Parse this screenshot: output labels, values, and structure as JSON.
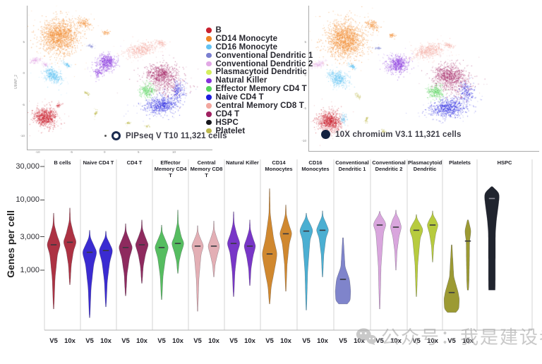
{
  "legend": {
    "items": [
      {
        "label": "B",
        "color": "#C9202E"
      },
      {
        "label": "CD14 Monocyte",
        "color": "#F08627"
      },
      {
        "label": "CD16 Monocyte",
        "color": "#62C3F3"
      },
      {
        "label": "Conventional Dendritic 1",
        "color": "#7A7FD0"
      },
      {
        "label": "Conventional Dendritic 2",
        "color": "#E2A9E5"
      },
      {
        "label": "Plasmacytoid Dendritic",
        "color": "#D5EF5D"
      },
      {
        "label": "Natural Killer",
        "color": "#8430DC"
      },
      {
        "label": "Effector Memory CD4 T",
        "color": "#58D55E"
      },
      {
        "label": "Naive CD4 T",
        "color": "#1D1CDF"
      },
      {
        "label": "Central Memory CD8 T",
        "color": "#F2A79F"
      },
      {
        "label": "CD4 T",
        "color": "#A02161"
      },
      {
        "label": "HSPC",
        "color": "#17171C"
      },
      {
        "label": "Platelet",
        "color": "#BEB94E"
      }
    ]
  },
  "umap_left": {
    "caption": "PIPseq V T10 11,321 cells",
    "marker": "open-circle",
    "axis_y_label": "UMAP_2",
    "x_ticks": [
      "-10",
      "-5",
      "0",
      "5",
      "10"
    ],
    "y_ticks": [
      "5",
      "0",
      "-5",
      "-10"
    ]
  },
  "umap_right": {
    "caption": "10X chromium V3.1 11,321 cells",
    "marker": "filled-circle",
    "y_ticks": [
      "5",
      "0",
      "-5",
      "-10"
    ]
  },
  "watermark": {
    "icon": "wechat-icon",
    "text": "公众号：我是建设者"
  },
  "chart_data": [
    {
      "type": "scatter",
      "name": "umap_pipseq",
      "title": "PIPseq V T10 11,321 cells",
      "clusters": [
        {
          "cell_type": "CD14 Monocyte",
          "color": "#F08627",
          "x": 46,
          "y": 44,
          "rx": 25,
          "ry": 23,
          "n": 1500,
          "a": 0
        },
        {
          "cell_type": "CD14 Monocyte",
          "color": "#F08627",
          "x": 80,
          "y": 24,
          "rx": 12,
          "ry": 7,
          "n": 130,
          "a": 25
        },
        {
          "cell_type": "CD14 Monocyte",
          "color": "#F08627",
          "x": 112,
          "y": 38,
          "rx": 5,
          "ry": 3,
          "n": 40,
          "a": 0
        },
        {
          "cell_type": "Conventional Dendritic 2",
          "color": "#E2A9E5",
          "x": 11,
          "y": 77,
          "rx": 9,
          "ry": 4,
          "n": 90,
          "a": -20
        },
        {
          "cell_type": "Conventional Dendritic 2",
          "color": "#E2A9E5",
          "x": 26,
          "y": 84,
          "rx": 5,
          "ry": 3,
          "n": 40,
          "a": 0
        },
        {
          "cell_type": "CD16 Monocyte",
          "color": "#62C3F3",
          "x": 37,
          "y": 99,
          "rx": 14,
          "ry": 9,
          "n": 380,
          "a": 35
        },
        {
          "cell_type": "CD16 Monocyte",
          "color": "#62C3F3",
          "x": 56,
          "y": 83,
          "rx": 6,
          "ry": 3,
          "n": 60,
          "a": 30
        },
        {
          "cell_type": "B",
          "color": "#C9202E",
          "x": 26,
          "y": 158,
          "rx": 16,
          "ry": 13,
          "n": 750,
          "a": 0
        },
        {
          "cell_type": "B",
          "color": "#C9202E",
          "x": 44,
          "y": 141,
          "rx": 4,
          "ry": 3,
          "n": 30,
          "a": 0
        },
        {
          "cell_type": "Natural Killer",
          "color": "#8430DC",
          "x": 113,
          "y": 80,
          "rx": 14,
          "ry": 11,
          "n": 480,
          "a": -15
        },
        {
          "cell_type": "Natural Killer",
          "color": "#8430DC",
          "x": 101,
          "y": 95,
          "rx": 6,
          "ry": 7,
          "n": 90,
          "a": 0
        },
        {
          "cell_type": "Conventional Dendritic 1",
          "color": "#7A7FD0",
          "x": 90,
          "y": 57,
          "rx": 5,
          "ry": 2,
          "n": 30,
          "a": 10
        },
        {
          "cell_type": "Central Memory CD8 T",
          "color": "#F2A79F",
          "x": 163,
          "y": 62,
          "rx": 23,
          "ry": 9,
          "n": 420,
          "a": -12
        },
        {
          "cell_type": "Central Memory CD8 T",
          "color": "#F2A79F",
          "x": 190,
          "y": 53,
          "rx": 7,
          "ry": 4,
          "n": 70,
          "a": 20
        },
        {
          "cell_type": "CD4 T",
          "color": "#A02161",
          "x": 190,
          "y": 97,
          "rx": 21,
          "ry": 14,
          "n": 650,
          "a": 0
        },
        {
          "cell_type": "CD4 T",
          "color": "#A02161",
          "x": 200,
          "y": 112,
          "rx": 27,
          "ry": 19,
          "n": 220,
          "a": 0
        },
        {
          "cell_type": "Effector Memory CD4 T",
          "color": "#58D55E",
          "x": 171,
          "y": 120,
          "rx": 10,
          "ry": 10,
          "n": 260,
          "a": 0
        },
        {
          "cell_type": "Naive CD4 T",
          "color": "#1D1CDF",
          "x": 190,
          "y": 141,
          "rx": 24,
          "ry": 12,
          "n": 600,
          "a": -8
        },
        {
          "cell_type": "Naive CD4 T",
          "color": "#1D1CDF",
          "x": 214,
          "y": 120,
          "rx": 9,
          "ry": 13,
          "n": 160,
          "a": 0
        },
        {
          "cell_type": "Platelet",
          "color": "#BEB94E",
          "x": 84,
          "y": 124,
          "rx": 5,
          "ry": 2,
          "n": 30,
          "a": 45
        },
        {
          "cell_type": "Platelet",
          "color": "#BEB94E",
          "x": 97,
          "y": 152,
          "rx": 2,
          "ry": 6,
          "n": 30,
          "a": 10
        },
        {
          "cell_type": "Platelet",
          "color": "#BEB94E",
          "x": 143,
          "y": 166,
          "rx": 4,
          "ry": 2,
          "n": 25,
          "a": 20
        },
        {
          "cell_type": "Platelet",
          "color": "#BEB94E",
          "x": 170,
          "y": 171,
          "rx": 4,
          "ry": 2,
          "n": 18,
          "a": 0
        }
      ]
    },
    {
      "type": "scatter",
      "name": "umap_10x",
      "title": "10X chromium V3.1 11,321 cells",
      "clusters": [
        {
          "cell_type": "CD14 Monocyte",
          "color": "#F08627",
          "x": 52,
          "y": 48,
          "rx": 27,
          "ry": 25,
          "n": 1600,
          "a": 0
        },
        {
          "cell_type": "CD14 Monocyte",
          "color": "#F08627",
          "x": 90,
          "y": 27,
          "rx": 12,
          "ry": 7,
          "n": 130,
          "a": 25
        },
        {
          "cell_type": "CD14 Monocyte",
          "color": "#F08627",
          "x": 118,
          "y": 42,
          "rx": 5,
          "ry": 3,
          "n": 40,
          "a": 0
        },
        {
          "cell_type": "Conventional Dendritic 2",
          "color": "#E2A9E5",
          "x": 13,
          "y": 83,
          "rx": 10,
          "ry": 4,
          "n": 100,
          "a": -20
        },
        {
          "cell_type": "CD16 Monocyte",
          "color": "#62C3F3",
          "x": 42,
          "y": 103,
          "rx": 15,
          "ry": 10,
          "n": 400,
          "a": 35
        },
        {
          "cell_type": "CD16 Monocyte",
          "color": "#62C3F3",
          "x": 62,
          "y": 86,
          "rx": 6,
          "ry": 3,
          "n": 60,
          "a": 30
        },
        {
          "cell_type": "B",
          "color": "#C9202E",
          "x": 30,
          "y": 164,
          "rx": 17,
          "ry": 14,
          "n": 800,
          "a": 0
        },
        {
          "cell_type": "CD16 Monocyte",
          "color": "#62C3F3",
          "x": 49,
          "y": 160,
          "rx": 4,
          "ry": 7,
          "n": 60,
          "a": 0
        },
        {
          "cell_type": "Natural Killer",
          "color": "#8430DC",
          "x": 126,
          "y": 83,
          "rx": 16,
          "ry": 12,
          "n": 520,
          "a": -15
        },
        {
          "cell_type": "Conventional Dendritic 1",
          "color": "#7A7FD0",
          "x": 98,
          "y": 60,
          "rx": 5,
          "ry": 2,
          "n": 30,
          "a": 10
        },
        {
          "cell_type": "Central Memory CD8 T",
          "color": "#F2A79F",
          "x": 170,
          "y": 64,
          "rx": 24,
          "ry": 10,
          "n": 450,
          "a": -12
        },
        {
          "cell_type": "Central Memory CD8 T",
          "color": "#F2A79F",
          "x": 198,
          "y": 56,
          "rx": 7,
          "ry": 4,
          "n": 70,
          "a": 20
        },
        {
          "cell_type": "CD4 T",
          "color": "#A02161",
          "x": 198,
          "y": 98,
          "rx": 23,
          "ry": 15,
          "n": 700,
          "a": 0
        },
        {
          "cell_type": "CD4 T",
          "color": "#A02161",
          "x": 208,
          "y": 112,
          "rx": 29,
          "ry": 20,
          "n": 230,
          "a": 0
        },
        {
          "cell_type": "Effector Memory CD4 T",
          "color": "#58D55E",
          "x": 180,
          "y": 122,
          "rx": 11,
          "ry": 11,
          "n": 280,
          "a": 0
        },
        {
          "cell_type": "Naive CD4 T",
          "color": "#1D1CDF",
          "x": 198,
          "y": 145,
          "rx": 26,
          "ry": 13,
          "n": 650,
          "a": -8
        },
        {
          "cell_type": "Naive CD4 T",
          "color": "#1D1CDF",
          "x": 224,
          "y": 122,
          "rx": 10,
          "ry": 14,
          "n": 170,
          "a": 0
        },
        {
          "cell_type": "Platelet",
          "color": "#BEB94E",
          "x": 70,
          "y": 128,
          "rx": 5,
          "ry": 2,
          "n": 30,
          "a": 45
        },
        {
          "cell_type": "Platelet",
          "color": "#BEB94E",
          "x": 82,
          "y": 162,
          "rx": 2,
          "ry": 6,
          "n": 30,
          "a": 10
        },
        {
          "cell_type": "Platelet",
          "color": "#BEB94E",
          "x": 106,
          "y": 178,
          "rx": 4,
          "ry": 2,
          "n": 25,
          "a": 20
        }
      ]
    },
    {
      "type": "violin",
      "name": "genes_per_cell_by_cell_type",
      "ylabel": "Genes per cell",
      "yscale": "log",
      "yticks": [
        {
          "label": "30,000",
          "value": 30000
        },
        {
          "label": "10,000",
          "value": 10000
        },
        {
          "label": "3,000",
          "value": 3000
        },
        {
          "label": "1,000",
          "value": 1000
        }
      ],
      "technologies": [
        "V5",
        "10x"
      ],
      "groups": [
        {
          "label": "B cells",
          "color": "#AC3243",
          "violins": [
            {
              "tech": "V5",
              "median": 2300,
              "max": 6500,
              "min": 280,
              "bulge_hi": 3000,
              "bulge_lo": 1700,
              "shape": "classic",
              "w": 10
            },
            {
              "tech": "10x",
              "median": 2500,
              "max": 7700,
              "min": 620,
              "bulge_hi": 3300,
              "bulge_lo": 1900,
              "shape": "classic",
              "w": 9.5
            }
          ]
        },
        {
          "label": "Naive CD4 T",
          "color": "#3A2BD1",
          "violins": [
            {
              "tech": "V5",
              "median": 1800,
              "max": 3700,
              "min": 210,
              "bulge_hi": 2300,
              "bulge_lo": 1200,
              "shape": "classic",
              "w": 10.5
            },
            {
              "tech": "10x",
              "median": 1900,
              "max": 3600,
              "min": 300,
              "bulge_hi": 2400,
              "bulge_lo": 1300,
              "shape": "classic",
              "w": 10
            }
          ]
        },
        {
          "label": "CD4 T",
          "color": "#8E2A5E",
          "violins": [
            {
              "tech": "V5",
              "median": 2100,
              "max": 4600,
              "min": 430,
              "bulge_hi": 2700,
              "bulge_lo": 1500,
              "shape": "classic",
              "w": 10
            },
            {
              "tech": "10x",
              "median": 2300,
              "max": 5200,
              "min": 650,
              "bulge_hi": 2900,
              "bulge_lo": 1700,
              "shape": "classic",
              "w": 9.5
            }
          ]
        },
        {
          "label": "Effector Memory CD4 T",
          "color": "#56BD60",
          "violins": [
            {
              "tech": "V5",
              "median": 2100,
              "max": 4400,
              "min": 380,
              "bulge_hi": 2700,
              "bulge_lo": 1500,
              "shape": "classic",
              "w": 10
            },
            {
              "tech": "10x",
              "median": 2400,
              "max": 7200,
              "min": 900,
              "bulge_hi": 3000,
              "bulge_lo": 1800,
              "shape": "classic",
              "w": 9
            }
          ]
        },
        {
          "label": "Central Memory CD8 T",
          "color": "#E3AFB5",
          "violins": [
            {
              "tech": "V5",
              "median": 2200,
              "max": 4300,
              "min": 260,
              "bulge_hi": 2700,
              "bulge_lo": 1700,
              "shape": "classic",
              "w": 9
            },
            {
              "tech": "10x",
              "median": 2200,
              "max": 5000,
              "min": 800,
              "bulge_hi": 2800,
              "bulge_lo": 1600,
              "shape": "classic",
              "w": 8.5
            }
          ]
        },
        {
          "label": "Natural Killer",
          "color": "#7836C7",
          "violins": [
            {
              "tech": "V5",
              "median": 2400,
              "max": 6800,
              "min": 420,
              "bulge_hi": 3100,
              "bulge_lo": 1800,
              "shape": "classic",
              "w": 9.5
            },
            {
              "tech": "10x",
              "median": 2200,
              "max": 5200,
              "min": 600,
              "bulge_hi": 2800,
              "bulge_lo": 1600,
              "shape": "classic",
              "w": 8.5
            }
          ]
        },
        {
          "label": "CD14 Monocytes",
          "color": "#D0882F",
          "violins": [
            {
              "tech": "V5",
              "median": 1700,
              "max": 14500,
              "min": 330,
              "bulge_hi": 2700,
              "bulge_lo": 900,
              "shape": "classic",
              "w": 11
            },
            {
              "tech": "10x",
              "median": 3300,
              "max": 8500,
              "min": 500,
              "bulge_hi": 4300,
              "bulge_lo": 2400,
              "shape": "classic",
              "w": 9
            }
          ]
        },
        {
          "label": "CD16 Monocytes",
          "color": "#4BAFD2",
          "violins": [
            {
              "tech": "V5",
              "median": 3600,
              "max": 6500,
              "min": 270,
              "bulge_hi": 4600,
              "bulge_lo": 2800,
              "shape": "classic",
              "w": 10
            },
            {
              "tech": "10x",
              "median": 3700,
              "max": 7000,
              "min": 800,
              "bulge_hi": 4700,
              "bulge_lo": 2900,
              "shape": "classic",
              "w": 9
            }
          ]
        },
        {
          "label": "Conventional Dendritic 1",
          "color": "#7F84CB",
          "violins": [
            {
              "tech": "V5",
              "median": 740,
              "max": 2900,
              "min": 330,
              "bulge_hi": 1100,
              "bulge_lo": 500,
              "shape": "bottombulb",
              "w": 11
            }
          ]
        },
        {
          "label": "Conventional Dendritic 2",
          "color": "#D9A6DD",
          "violins": [
            {
              "tech": "V5",
              "median": 4400,
              "max": 6900,
              "min": 280,
              "bulge_hi": 5400,
              "bulge_lo": 3600,
              "shape": "classic",
              "w": 10
            },
            {
              "tech": "10x",
              "median": 4100,
              "max": 7200,
              "min": 1000,
              "bulge_hi": 5400,
              "bulge_lo": 3000,
              "shape": "classic",
              "w": 8
            }
          ]
        },
        {
          "label": "Plasmacytoid Dendritic",
          "color": "#B7CB3E",
          "violins": [
            {
              "tech": "V5",
              "median": 3700,
              "max": 6200,
              "min": 420,
              "bulge_hi": 4600,
              "bulge_lo": 2900,
              "shape": "classic",
              "w": 10
            },
            {
              "tech": "10x",
              "median": 4400,
              "max": 7000,
              "min": 1300,
              "bulge_hi": 5300,
              "bulge_lo": 3300,
              "shape": "classic",
              "w": 8
            }
          ]
        },
        {
          "label": "Platelets",
          "color": "#9C9A33",
          "violins": [
            {
              "tech": "V5",
              "median": 480,
              "max": 2300,
              "min": 250,
              "bulge_hi": 800,
              "bulge_lo": 380,
              "shape": "bottombulb",
              "w": 11
            },
            {
              "tech": "10x",
              "median": 2600,
              "max": 5200,
              "min": 520,
              "bulge_hi": 3600,
              "bulge_lo": 1500,
              "shape": "narrow",
              "w": 4.5
            }
          ]
        },
        {
          "label": "HSPC",
          "color": "#20242E",
          "dash_color": "#8a8a96",
          "violins": [
            {
              "tech": "",
              "median": 10500,
              "max": 15500,
              "min": 520,
              "bulge_hi": 12500,
              "bulge_lo": 3500,
              "shape": "tophead",
              "w": 11
            }
          ]
        }
      ]
    }
  ]
}
